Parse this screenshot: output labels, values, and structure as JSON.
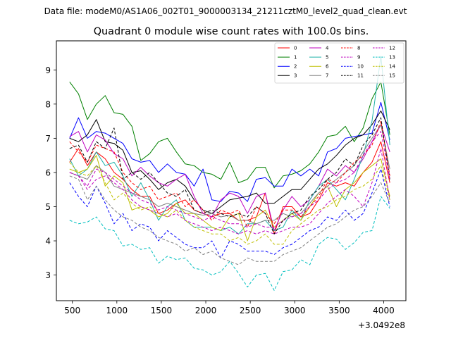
{
  "chart_data": {
    "type": "line",
    "suptitle": "Data file: modeM0/AS1A06_002T01_9000003134_21211cztM0_level2_quad_clean.evt",
    "title": "Quadrant 0 module wise count rates with 100.0s bins.",
    "xlabel": "",
    "ylabel": "",
    "x_offset_label": "+3.0492e8",
    "xlim": [
      320,
      4250
    ],
    "ylim": [
      2.25,
      9.85
    ],
    "x_ticks": [
      500,
      1000,
      1500,
      2000,
      2500,
      3000,
      3500,
      4000
    ],
    "y_ticks": [
      3,
      4,
      5,
      6,
      7,
      8,
      9
    ],
    "grid": false,
    "legend_position": "top-right",
    "legend_columns": 4,
    "x": [
      469,
      569,
      669,
      769,
      869,
      969,
      1069,
      1169,
      1269,
      1369,
      1469,
      1569,
      1669,
      1769,
      1869,
      1969,
      2069,
      2169,
      2269,
      2369,
      2469,
      2569,
      2669,
      2769,
      2869,
      2969,
      3069,
      3169,
      3269,
      3369,
      3469,
      3569,
      3669,
      3769,
      3869,
      3969,
      4069
    ],
    "series": [
      {
        "name": "0",
        "color": "#ff0000",
        "dash": "solid",
        "values": [
          6.3,
          6.7,
          6.2,
          6.6,
          6.4,
          6.0,
          5.8,
          5.5,
          5.3,
          5.3,
          4.8,
          4.9,
          5.1,
          5.2,
          4.9,
          4.8,
          4.7,
          4.8,
          4.8,
          4.6,
          4.6,
          4.7,
          5.4,
          4.2,
          5.0,
          5.0,
          4.7,
          4.8,
          5.2,
          5.7,
          5.6,
          5.7,
          5.6,
          6.0,
          6.3,
          6.9,
          5.7
        ]
      },
      {
        "name": "1",
        "color": "#008000",
        "dash": "solid",
        "values": [
          8.65,
          8.3,
          7.55,
          8.0,
          8.25,
          7.75,
          7.7,
          7.35,
          6.35,
          6.55,
          6.9,
          7.0,
          6.6,
          6.25,
          6.2,
          6.0,
          5.95,
          5.8,
          6.3,
          5.7,
          5.8,
          6.15,
          6.15,
          5.55,
          5.9,
          5.95,
          6.05,
          6.25,
          6.6,
          7.05,
          7.1,
          7.35,
          6.9,
          7.3,
          8.15,
          8.65,
          7.1
        ]
      },
      {
        "name": "2",
        "color": "#0000ff",
        "dash": "solid",
        "values": [
          7.0,
          7.6,
          7.0,
          7.2,
          7.15,
          7.0,
          6.85,
          6.4,
          6.3,
          6.35,
          6.0,
          6.25,
          6.0,
          5.95,
          5.6,
          6.1,
          5.2,
          5.15,
          5.45,
          5.4,
          5.15,
          5.8,
          5.85,
          5.6,
          5.6,
          6.1,
          5.9,
          6.1,
          5.9,
          6.6,
          6.7,
          7.0,
          7.05,
          7.1,
          7.15,
          8.05,
          6.95
        ]
      },
      {
        "name": "3",
        "color": "#000000",
        "dash": "solid",
        "values": [
          7.0,
          6.9,
          7.1,
          7.55,
          6.9,
          6.85,
          6.65,
          6.0,
          6.05,
          5.8,
          5.5,
          5.7,
          5.8,
          5.6,
          5.2,
          4.9,
          4.8,
          5.0,
          5.2,
          5.25,
          5.3,
          5.4,
          5.1,
          5.1,
          5.3,
          5.5,
          5.5,
          5.8,
          6.1,
          6.25,
          6.5,
          6.8,
          7.0,
          7.1,
          7.4,
          7.8,
          7.25
        ]
      },
      {
        "name": "4",
        "color": "#bf00bf",
        "dash": "solid",
        "values": [
          7.05,
          7.2,
          6.6,
          7.1,
          6.95,
          6.55,
          6.4,
          5.9,
          6.15,
          5.9,
          5.7,
          5.6,
          5.8,
          5.95,
          5.3,
          4.8,
          4.7,
          5.2,
          5.4,
          5.3,
          4.8,
          5.3,
          5.4,
          4.3,
          4.9,
          5.3,
          5.0,
          5.2,
          5.6,
          6.1,
          5.9,
          6.2,
          6.0,
          6.4,
          6.9,
          7.4,
          6.6
        ]
      },
      {
        "name": "5",
        "color": "#20b2aa",
        "dash": "solid",
        "values": [
          6.4,
          5.9,
          6.1,
          6.6,
          6.2,
          6.3,
          5.9,
          5.3,
          5.7,
          5.2,
          4.6,
          5.0,
          5.2,
          4.6,
          4.4,
          4.4,
          4.4,
          4.3,
          4.4,
          4.2,
          4.5,
          4.5,
          4.6,
          4.3,
          4.4,
          4.9,
          4.6,
          5.2,
          5.6,
          5.8,
          5.5,
          5.2,
          5.8,
          6.5,
          7.5,
          9.4,
          6.8
        ]
      },
      {
        "name": "6",
        "color": "#bfbf00",
        "dash": "solid",
        "values": [
          6.1,
          6.0,
          6.1,
          6.5,
          5.6,
          5.9,
          5.7,
          4.9,
          5.0,
          4.9,
          4.7,
          4.8,
          5.1,
          4.8,
          4.8,
          4.6,
          4.4,
          4.3,
          4.7,
          4.8,
          4.0,
          4.7,
          4.9,
          4.4,
          4.6,
          4.8,
          4.6,
          5.0,
          5.4,
          5.6,
          5.0,
          5.5,
          5.7,
          6.0,
          6.2,
          6.4,
          5.3
        ]
      },
      {
        "name": "7",
        "color": "#808080",
        "dash": "solid",
        "values": [
          6.0,
          5.9,
          5.8,
          6.2,
          6.0,
          5.6,
          5.5,
          5.4,
          5.3,
          5.2,
          5.0,
          5.1,
          5.0,
          4.9,
          4.8,
          4.75,
          4.8,
          4.7,
          4.75,
          4.6,
          4.6,
          4.5,
          4.6,
          4.6,
          4.8,
          4.7,
          4.8,
          5.1,
          5.4,
          5.6,
          5.8,
          6.0,
          6.2,
          6.6,
          7.0,
          7.4,
          6.1
        ]
      },
      {
        "name": "8",
        "color": "#ff0000",
        "dash": "dashed",
        "values": [
          6.9,
          6.6,
          6.3,
          6.8,
          6.7,
          6.6,
          6.0,
          5.7,
          5.5,
          5.6,
          5.2,
          5.3,
          5.4,
          5.0,
          5.2,
          4.9,
          4.6,
          4.9,
          4.8,
          4.9,
          4.4,
          5.0,
          4.8,
          4.5,
          4.9,
          4.9,
          4.7,
          5.0,
          5.3,
          5.8,
          5.7,
          6.0,
          6.3,
          6.5,
          6.8,
          7.5,
          5.9
        ]
      },
      {
        "name": "9",
        "color": "#bf00bf",
        "dash": "dashed",
        "values": [
          6.0,
          5.9,
          5.5,
          5.8,
          5.9,
          5.7,
          5.5,
          5.2,
          5.0,
          4.9,
          4.8,
          4.7,
          4.8,
          4.6,
          4.5,
          4.4,
          4.3,
          4.4,
          4.3,
          4.2,
          4.3,
          4.2,
          4.3,
          4.2,
          4.3,
          4.4,
          4.4,
          4.5,
          4.8,
          5.1,
          5.3,
          5.5,
          5.3,
          5.0,
          5.7,
          6.7,
          5.2
        ]
      },
      {
        "name": "10",
        "color": "#0000ff",
        "dash": "dashed",
        "values": [
          5.7,
          5.3,
          5.0,
          5.6,
          5.1,
          4.5,
          4.8,
          4.3,
          4.5,
          4.4,
          4.0,
          4.3,
          4.1,
          3.9,
          3.8,
          3.8,
          4.0,
          3.5,
          4.0,
          3.9,
          3.7,
          3.7,
          3.7,
          3.6,
          3.8,
          3.9,
          4.1,
          4.3,
          4.4,
          4.7,
          4.6,
          4.9,
          4.6,
          4.8,
          5.4,
          6.1,
          5.0
        ]
      },
      {
        "name": "11",
        "color": "#000000",
        "dash": "dashed",
        "values": [
          6.7,
          6.8,
          6.3,
          6.9,
          6.7,
          7.3,
          5.8,
          6.0,
          5.8,
          6.0,
          5.7,
          5.4,
          5.3,
          5.5,
          4.9,
          4.8,
          4.9,
          4.8,
          4.7,
          4.8,
          4.7,
          5.0,
          4.8,
          4.2,
          4.6,
          4.8,
          4.9,
          5.3,
          5.5,
          5.8,
          6.0,
          6.4,
          6.2,
          6.8,
          7.1,
          7.6,
          5.8
        ]
      },
      {
        "name": "12",
        "color": "#bf00bf",
        "dash": "dashed",
        "values": [
          6.0,
          5.9,
          5.6,
          6.1,
          6.0,
          5.8,
          5.6,
          5.4,
          5.2,
          5.1,
          4.9,
          5.0,
          4.9,
          4.8,
          4.7,
          4.6,
          4.7,
          4.6,
          4.5,
          4.5,
          4.4,
          4.5,
          4.4,
          4.4,
          4.6,
          4.7,
          4.8,
          5.0,
          5.2,
          5.5,
          5.7,
          5.8,
          6.0,
          6.5,
          6.9,
          7.2,
          5.8
        ]
      },
      {
        "name": "13",
        "color": "#00bfbf",
        "dash": "dashed",
        "values": [
          4.6,
          4.5,
          4.55,
          4.7,
          4.35,
          4.3,
          3.85,
          3.9,
          3.75,
          3.8,
          3.35,
          3.55,
          3.45,
          3.5,
          3.2,
          3.15,
          3.0,
          3.1,
          3.4,
          3.05,
          2.65,
          3.0,
          3.05,
          2.55,
          3.1,
          3.15,
          3.45,
          3.3,
          3.9,
          4.1,
          4.05,
          3.75,
          3.95,
          4.25,
          4.3,
          5.3,
          4.95
        ]
      },
      {
        "name": "14",
        "color": "#bfbf00",
        "dash": "dashed",
        "values": [
          6.3,
          6.0,
          5.9,
          6.2,
          5.7,
          5.2,
          5.4,
          5.1,
          4.9,
          5.0,
          4.8,
          4.7,
          4.9,
          4.6,
          4.4,
          4.3,
          4.2,
          4.2,
          4.0,
          4.1,
          3.9,
          4.0,
          4.2,
          3.9,
          3.9,
          4.3,
          4.5,
          4.7,
          4.9,
          5.0,
          5.2,
          5.3,
          5.5,
          5.6,
          5.8,
          6.2,
          5.2
        ]
      },
      {
        "name": "15",
        "color": "#808080",
        "dash": "dashed",
        "values": [
          5.9,
          5.8,
          5.2,
          5.6,
          5.2,
          4.9,
          4.7,
          4.6,
          4.4,
          4.3,
          4.1,
          4.0,
          3.9,
          3.7,
          3.8,
          3.6,
          3.7,
          3.5,
          3.4,
          3.3,
          3.5,
          3.4,
          3.4,
          3.4,
          3.6,
          3.7,
          3.8,
          4.0,
          4.2,
          4.4,
          4.5,
          4.7,
          4.9,
          5.0,
          5.3,
          5.7,
          5.1
        ]
      }
    ]
  }
}
